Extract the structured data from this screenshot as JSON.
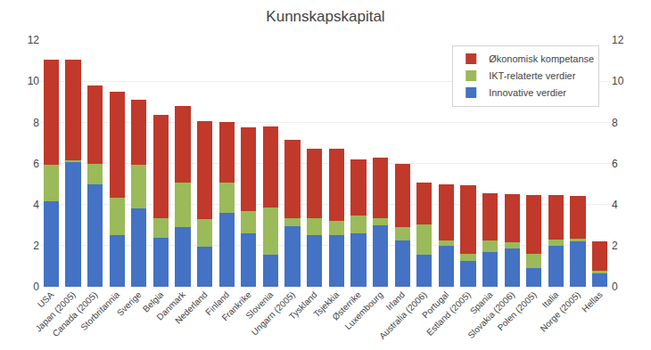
{
  "chart_data": {
    "type": "bar",
    "stacked": true,
    "title": "Kunnskapskapital",
    "categories": [
      "USA",
      "Japan (2005)",
      "Canada (2005)",
      "Storbritannia",
      "Sverige",
      "Belgia",
      "Danmark",
      "Nederland",
      "Finland",
      "Frankrike",
      "Slovenia",
      "Ungarn (2005)",
      "Tyskland",
      "Tsjekkia",
      "Østerrike",
      "Luxembourg",
      "Irland",
      "Australia (2006)",
      "Portugal",
      "Estland (2005)",
      "Spania",
      "Slovakia (2006)",
      "Polen (2005)",
      "Italia",
      "Norge (2005)",
      "Hellas"
    ],
    "series": [
      {
        "name": "Innovative verdier",
        "color": "#4472c4",
        "values": [
          4.15,
          6.1,
          5.0,
          2.5,
          3.8,
          2.4,
          2.9,
          1.95,
          3.6,
          2.6,
          1.55,
          2.95,
          2.5,
          2.5,
          2.6,
          3.0,
          2.25,
          1.55,
          2.0,
          1.25,
          1.7,
          1.85,
          0.9,
          2.0,
          2.2,
          0.65
        ]
      },
      {
        "name": "IKT-relaterte verdier",
        "color": "#9bba59",
        "values": [
          1.8,
          0.05,
          1.0,
          1.85,
          2.15,
          0.95,
          2.15,
          1.35,
          1.45,
          1.1,
          2.3,
          0.4,
          0.85,
          0.7,
          0.85,
          0.35,
          0.65,
          1.5,
          0.25,
          0.35,
          0.55,
          0.3,
          0.7,
          0.3,
          0.15,
          0.15
        ]
      },
      {
        "name": "Økonomisk kompetanse",
        "color": "#c0392b",
        "values": [
          5.1,
          4.9,
          3.8,
          5.15,
          3.15,
          5.0,
          3.75,
          4.75,
          2.95,
          4.05,
          3.95,
          3.8,
          3.35,
          3.5,
          2.75,
          2.95,
          3.1,
          2.0,
          2.75,
          3.35,
          2.3,
          2.35,
          2.85,
          2.15,
          2.05,
          1.4
        ]
      }
    ],
    "ylim": [
      0,
      12
    ],
    "yticks": [
      0,
      2,
      4,
      6,
      8,
      10,
      12
    ],
    "y2lim": [
      0,
      12
    ],
    "y2ticks": [
      0,
      2,
      4,
      6,
      8,
      10,
      12
    ],
    "grid": true,
    "legend": "upper right"
  }
}
